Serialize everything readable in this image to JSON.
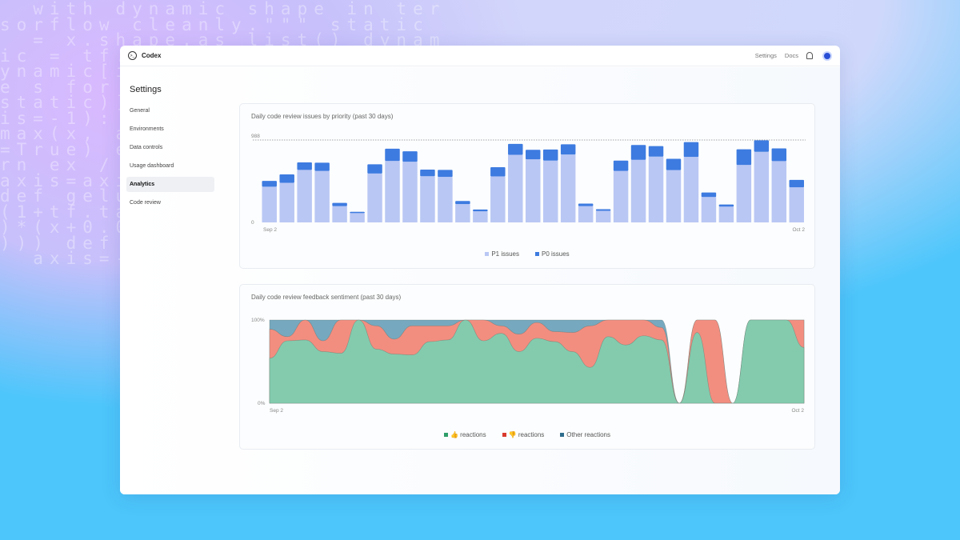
{
  "background_code": [
    "  with dynamic shape in ter",
    "sorflow cleanly.\"\"\" static",
    "  = x.shape.as_list() dynam",
    "ic = tf.",
    "ynamic[i",
    "e s for",
    "static)]",
    "is=-1):",
    "max(x, a",
    "=True) e",
    "rn ex /",
    "axis=axi",
    "def gelu",
    "(1+tf.ta",
    ")*(x+0.0",
    "))) def",
    "  axis=-1"
  ],
  "header": {
    "brand": "Codex",
    "links": [
      "Settings",
      "Docs"
    ],
    "icons": [
      "terminal-logo-icon",
      "bell-icon",
      "avatar"
    ]
  },
  "sidebar": {
    "title": "Settings",
    "items": [
      {
        "label": "General"
      },
      {
        "label": "Environments"
      },
      {
        "label": "Data controls"
      },
      {
        "label": "Usage dashboard"
      },
      {
        "label": "Analytics",
        "active": true
      },
      {
        "label": "Code review"
      }
    ]
  },
  "colors": {
    "p1": "#b9c7f4",
    "p0": "#3d7be0",
    "thumbs_up": "#84cbae",
    "thumbs_down": "#f28e80",
    "other": "#76a9bf"
  },
  "chart_data": [
    {
      "type": "bar",
      "stacked": true,
      "title": "Daily code review issues by priority (past 30 days)",
      "x_tick_labels": [
        "Sep 2",
        "Oct 2"
      ],
      "y_tick_labels": [
        "0",
        "988"
      ],
      "ylim": [
        0,
        988
      ],
      "reference_line": 988,
      "legend_position": "bottom",
      "series": [
        {
          "name": "P1 issues",
          "values": [
            428,
            475,
            630,
            618,
            196,
            111,
            586,
            738,
            728,
            554,
            545,
            219,
            133,
            551,
            811,
            757,
            741,
            814,
            196,
            139,
            618,
            751,
            789,
            627,
            785,
            304,
            190,
            690,
            846,
            735,
            421
          ]
        },
        {
          "name": "P0 issues",
          "values": [
            69,
            101,
            89,
            98,
            38,
            16,
            111,
            146,
            124,
            79,
            85,
            38,
            22,
            111,
            130,
            114,
            133,
            123,
            29,
            19,
            123,
            177,
            126,
            136,
            178,
            54,
            25,
            187,
            139,
            152,
            89
          ]
        }
      ]
    },
    {
      "type": "area",
      "stacked": true,
      "normalized": true,
      "title": "Daily code review feedback sentiment (past 30 days)",
      "x_tick_labels": [
        "Sep 2",
        "Oct 2"
      ],
      "y_tick_labels": [
        "0%",
        "100%"
      ],
      "ylim": [
        0,
        100
      ],
      "legend_position": "bottom",
      "series": [
        {
          "name": "👍 reactions",
          "values": [
            54,
            75,
            76,
            62,
            60,
            100,
            65,
            59,
            58,
            74,
            76,
            100,
            75,
            84,
            62,
            78,
            74,
            62,
            43,
            80,
            70,
            81,
            76,
            0,
            85,
            0,
            0,
            100,
            100,
            100,
            67
          ]
        },
        {
          "name": "👎 reactions",
          "values": [
            35,
            5,
            24,
            13,
            40,
            0,
            28,
            18,
            35,
            19,
            17,
            0,
            25,
            9,
            21,
            19,
            12,
            23,
            50,
            20,
            30,
            19,
            15,
            0,
            15,
            100,
            0,
            0,
            0,
            0,
            33
          ]
        },
        {
          "name": "Other reactions",
          "values": [
            11,
            20,
            0,
            25,
            0,
            0,
            7,
            23,
            7,
            7,
            7,
            0,
            0,
            7,
            17,
            3,
            14,
            15,
            7,
            0,
            0,
            0,
            9,
            0,
            0,
            0,
            0,
            0,
            0,
            0,
            0
          ]
        }
      ]
    }
  ]
}
